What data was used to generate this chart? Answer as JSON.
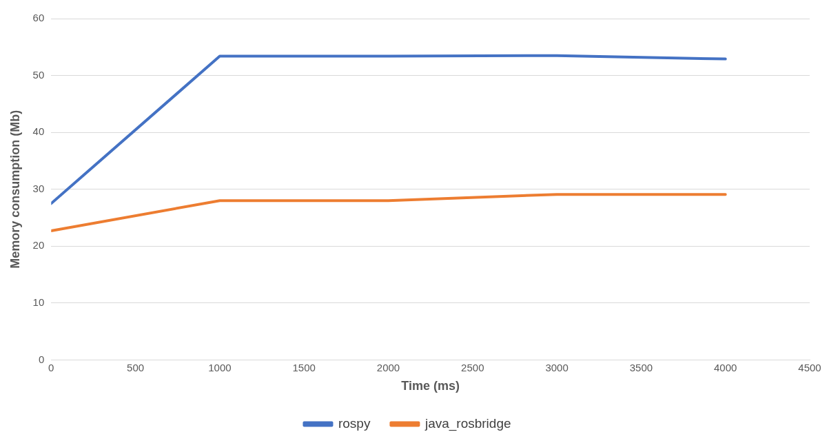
{
  "chart_data": {
    "type": "line",
    "xlabel": "Time (ms)",
    "ylabel": "Memory consumption (Mb)",
    "x": [
      0,
      1000,
      2000,
      3000,
      4000
    ],
    "series": [
      {
        "name": "rospy",
        "color": "#4472c4",
        "values": [
          27.5,
          53.4,
          53.4,
          53.5,
          52.9
        ]
      },
      {
        "name": "java_rosbridge",
        "color": "#ed7d31",
        "values": [
          22.7,
          28.0,
          28.0,
          29.1,
          29.1
        ]
      }
    ],
    "xlim": [
      0,
      4500
    ],
    "xticks": [
      0,
      500,
      1000,
      1500,
      2000,
      2500,
      3000,
      3500,
      4000,
      4500
    ],
    "ylim": [
      0,
      60
    ],
    "yticks": [
      0,
      10,
      20,
      30,
      40,
      50,
      60
    ],
    "grid": "y",
    "legend": "bottom",
    "marker": "none",
    "line_style": "solid"
  }
}
